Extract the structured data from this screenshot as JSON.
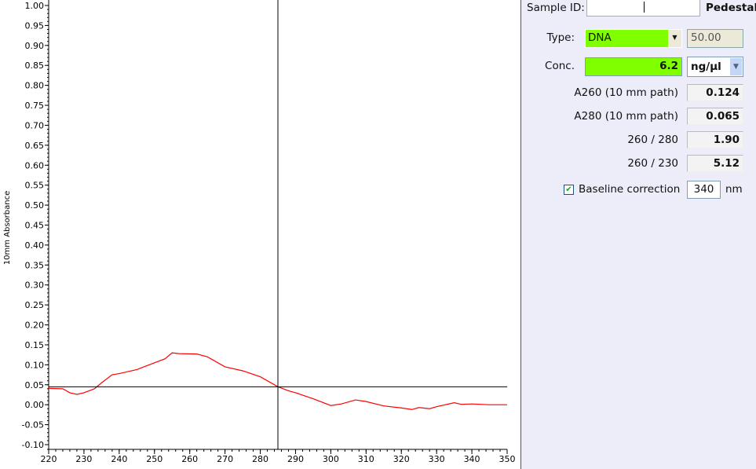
{
  "chart_data": {
    "type": "line",
    "title": "",
    "xlabel": "",
    "ylabel": "10mm Absorbance",
    "xlim": [
      220,
      350
    ],
    "ylim": [
      -0.1,
      1.0
    ],
    "xticks": [
      220,
      230,
      240,
      250,
      260,
      270,
      280,
      290,
      300,
      310,
      320,
      330,
      340,
      350
    ],
    "yticks": [
      -0.1,
      -0.05,
      0.0,
      0.05,
      0.1,
      0.15,
      0.2,
      0.25,
      0.3,
      0.35,
      0.4,
      0.45,
      0.5,
      0.55,
      0.6,
      0.65,
      0.7,
      0.75,
      0.8,
      0.85,
      0.9,
      0.95,
      1.0
    ],
    "grid": false,
    "series": [
      {
        "color": "#ff0000",
        "x": [
          220,
          224,
          226,
          228,
          230,
          233,
          235,
          238,
          240,
          245,
          250,
          253,
          255,
          257,
          262,
          265,
          270,
          275,
          280,
          285,
          288,
          290,
          295,
          300,
          303,
          307,
          310,
          315,
          320,
          323,
          325,
          328,
          330,
          335,
          337,
          340,
          345,
          350
        ],
        "y": [
          0.041,
          0.04,
          0.03,
          0.026,
          0.03,
          0.04,
          0.055,
          0.075,
          0.078,
          0.088,
          0.105,
          0.115,
          0.13,
          0.128,
          0.127,
          0.12,
          0.095,
          0.085,
          0.07,
          0.045,
          0.035,
          0.03,
          0.015,
          -0.002,
          0.002,
          0.012,
          0.008,
          -0.003,
          -0.008,
          -0.012,
          -0.007,
          -0.01,
          -0.005,
          0.005,
          0.001,
          0.002,
          0.0,
          0.0
        ]
      }
    ],
    "cursor": {
      "x": 285,
      "y": 0.045
    }
  },
  "panel": {
    "sample_id_label": "Sample ID:",
    "sample_id_value": "",
    "pedestal": "Pedestal",
    "type_label": "Type:",
    "type_value": "DNA",
    "type_factor": "50.00",
    "conc_label": "Conc.",
    "conc_value": "6.2",
    "conc_unit": "ng/µl",
    "a260_label": "A260 (10 mm path)",
    "a260_value": "0.124",
    "a280_label": "A280 (10 mm path)",
    "a280_value": "0.065",
    "r260_280_label": "260 / 280",
    "r260_280_value": "1.90",
    "r260_230_label": "260 / 230",
    "r260_230_value": "5.12",
    "baseline_label": "Baseline correction",
    "baseline_checked": true,
    "baseline_value": "340",
    "baseline_unit": "nm"
  }
}
